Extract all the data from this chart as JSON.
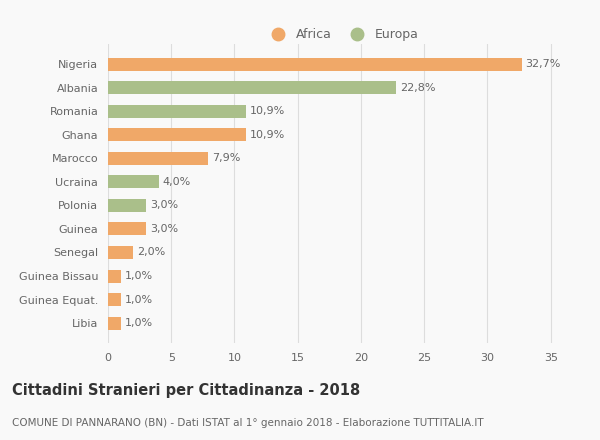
{
  "categories": [
    "Nigeria",
    "Albania",
    "Romania",
    "Ghana",
    "Marocco",
    "Ucraina",
    "Polonia",
    "Guinea",
    "Senegal",
    "Guinea Bissau",
    "Guinea Equat.",
    "Libia"
  ],
  "values": [
    32.7,
    22.8,
    10.9,
    10.9,
    7.9,
    4.0,
    3.0,
    3.0,
    2.0,
    1.0,
    1.0,
    1.0
  ],
  "labels": [
    "32,7%",
    "22,8%",
    "10,9%",
    "10,9%",
    "7,9%",
    "4,0%",
    "3,0%",
    "3,0%",
    "2,0%",
    "1,0%",
    "1,0%",
    "1,0%"
  ],
  "continents": [
    "Africa",
    "Europa",
    "Europa",
    "Africa",
    "Africa",
    "Europa",
    "Europa",
    "Africa",
    "Africa",
    "Africa",
    "Africa",
    "Africa"
  ],
  "color_africa": "#F0A868",
  "color_europa": "#AABF8A",
  "bar_height": 0.55,
  "xlim": [
    0,
    37
  ],
  "xticks": [
    0,
    5,
    10,
    15,
    20,
    25,
    30,
    35
  ],
  "title": "Cittadini Stranieri per Cittadinanza - 2018",
  "subtitle": "COMUNE DI PANNARANO (BN) - Dati ISTAT al 1° gennaio 2018 - Elaborazione TUTTITALIA.IT",
  "legend_africa": "Africa",
  "legend_europa": "Europa",
  "background_color": "#f9f9f9",
  "grid_color": "#dddddd",
  "label_fontsize": 8,
  "tick_fontsize": 8,
  "title_fontsize": 10.5,
  "subtitle_fontsize": 7.5
}
